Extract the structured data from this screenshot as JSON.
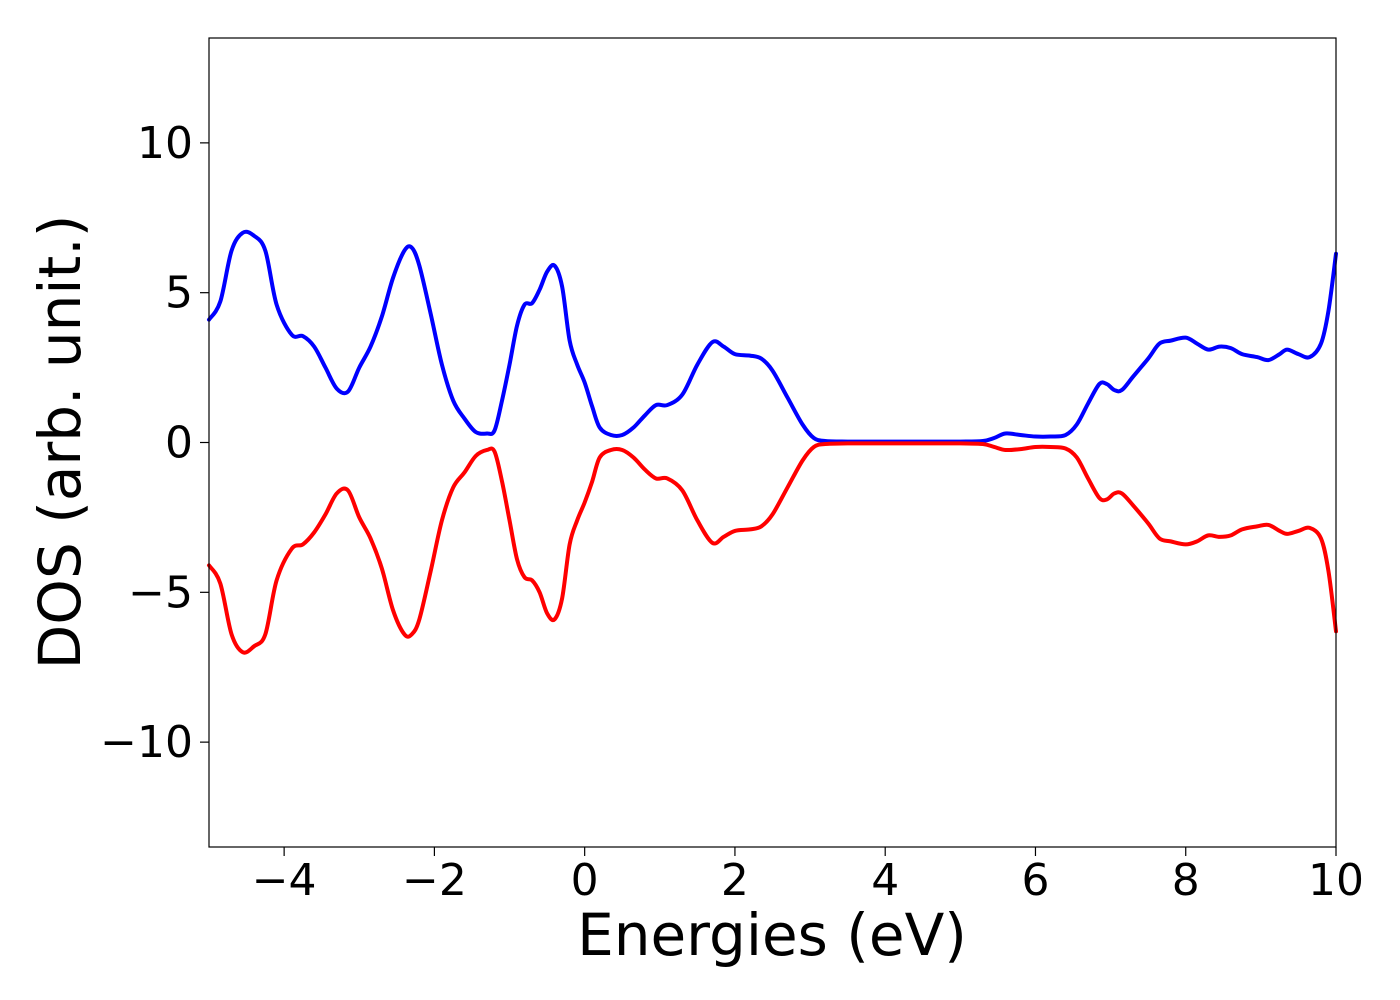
{
  "chart_data": {
    "type": "line",
    "title": "",
    "xlabel": "Energies (eV)",
    "ylabel": "DOS (arb. unit.)",
    "xlim": [
      -5,
      10
    ],
    "ylim": [
      -13.5,
      13.5
    ],
    "xticks": [
      -4,
      -2,
      0,
      2,
      4,
      6,
      8,
      10
    ],
    "yticks": [
      -10,
      -5,
      0,
      5,
      10
    ],
    "xtick_labels": [
      "−4",
      "−2",
      "0",
      "2",
      "4",
      "6",
      "8",
      "10"
    ],
    "ytick_labels": [
      "−10",
      "−5",
      "0",
      "5",
      "10"
    ],
    "grid": false,
    "legend": "none",
    "series": [
      {
        "color": "#0000ff",
        "x": [
          -5.0,
          -4.85,
          -4.7,
          -4.55,
          -4.4,
          -4.25,
          -4.1,
          -3.9,
          -3.75,
          -3.6,
          -3.45,
          -3.3,
          -3.15,
          -3.0,
          -2.85,
          -2.7,
          -2.55,
          -2.4,
          -2.3,
          -2.2,
          -2.05,
          -1.9,
          -1.75,
          -1.6,
          -1.45,
          -1.3,
          -1.2,
          -1.1,
          -1.0,
          -0.9,
          -0.8,
          -0.7,
          -0.6,
          -0.5,
          -0.4,
          -0.3,
          -0.2,
          -0.1,
          0.0,
          0.1,
          0.2,
          0.35,
          0.5,
          0.65,
          0.8,
          0.95,
          1.1,
          1.3,
          1.5,
          1.7,
          1.85,
          2.0,
          2.2,
          2.35,
          2.5,
          2.7,
          2.9,
          3.05,
          3.2,
          3.5,
          4.0,
          4.5,
          5.0,
          5.3,
          5.45,
          5.6,
          5.8,
          6.0,
          6.2,
          6.4,
          6.55,
          6.7,
          6.85,
          6.95,
          7.05,
          7.15,
          7.3,
          7.5,
          7.65,
          7.8,
          8.0,
          8.15,
          8.3,
          8.45,
          8.6,
          8.75,
          8.95,
          9.1,
          9.25,
          9.35,
          9.5,
          9.65,
          9.8,
          9.9,
          10.0
        ],
        "y": [
          4.1,
          4.7,
          6.4,
          7.0,
          6.9,
          6.4,
          4.6,
          3.6,
          3.55,
          3.2,
          2.5,
          1.8,
          1.7,
          2.5,
          3.2,
          4.2,
          5.5,
          6.4,
          6.5,
          5.9,
          4.3,
          2.6,
          1.4,
          0.8,
          0.35,
          0.3,
          0.4,
          1.4,
          2.6,
          3.9,
          4.6,
          4.65,
          5.1,
          5.7,
          5.9,
          5.2,
          3.4,
          2.6,
          2.0,
          1.2,
          0.5,
          0.25,
          0.25,
          0.5,
          0.9,
          1.25,
          1.25,
          1.6,
          2.6,
          3.35,
          3.2,
          2.95,
          2.9,
          2.8,
          2.4,
          1.5,
          0.6,
          0.15,
          0.05,
          0.03,
          0.03,
          0.03,
          0.03,
          0.05,
          0.15,
          0.3,
          0.25,
          0.2,
          0.2,
          0.25,
          0.6,
          1.3,
          1.95,
          1.95,
          1.75,
          1.75,
          2.2,
          2.8,
          3.3,
          3.4,
          3.5,
          3.3,
          3.1,
          3.2,
          3.15,
          2.95,
          2.85,
          2.75,
          2.95,
          3.1,
          2.95,
          2.85,
          3.3,
          4.4,
          6.3
        ]
      },
      {
        "color": "#ff0000",
        "x": [
          -5.0,
          -4.85,
          -4.7,
          -4.55,
          -4.4,
          -4.25,
          -4.1,
          -3.9,
          -3.75,
          -3.6,
          -3.45,
          -3.3,
          -3.15,
          -3.0,
          -2.85,
          -2.7,
          -2.55,
          -2.4,
          -2.3,
          -2.2,
          -2.05,
          -1.9,
          -1.75,
          -1.6,
          -1.45,
          -1.3,
          -1.2,
          -1.1,
          -1.0,
          -0.9,
          -0.8,
          -0.7,
          -0.6,
          -0.5,
          -0.4,
          -0.3,
          -0.2,
          -0.1,
          0.0,
          0.1,
          0.2,
          0.35,
          0.5,
          0.65,
          0.8,
          0.95,
          1.1,
          1.3,
          1.5,
          1.7,
          1.85,
          2.0,
          2.2,
          2.35,
          2.5,
          2.7,
          2.9,
          3.05,
          3.2,
          3.5,
          4.0,
          4.5,
          5.0,
          5.3,
          5.45,
          5.6,
          5.8,
          6.0,
          6.2,
          6.4,
          6.55,
          6.7,
          6.85,
          6.95,
          7.05,
          7.15,
          7.3,
          7.5,
          7.65,
          7.8,
          8.0,
          8.15,
          8.3,
          8.45,
          8.6,
          8.75,
          8.95,
          9.1,
          9.25,
          9.35,
          9.5,
          9.65,
          9.8,
          9.9,
          10.0
        ],
        "y": [
          -4.1,
          -4.7,
          -6.4,
          -7.0,
          -6.8,
          -6.4,
          -4.6,
          -3.55,
          -3.4,
          -3.0,
          -2.4,
          -1.7,
          -1.6,
          -2.5,
          -3.2,
          -4.2,
          -5.6,
          -6.4,
          -6.4,
          -5.9,
          -4.3,
          -2.6,
          -1.5,
          -1.0,
          -0.45,
          -0.25,
          -0.3,
          -1.3,
          -2.6,
          -3.9,
          -4.5,
          -4.6,
          -5.0,
          -5.7,
          -5.9,
          -5.2,
          -3.4,
          -2.6,
          -2.0,
          -1.3,
          -0.5,
          -0.25,
          -0.25,
          -0.5,
          -0.9,
          -1.2,
          -1.2,
          -1.6,
          -2.6,
          -3.35,
          -3.15,
          -2.95,
          -2.9,
          -2.8,
          -2.4,
          -1.5,
          -0.6,
          -0.15,
          -0.05,
          -0.03,
          -0.03,
          -0.03,
          -0.03,
          -0.05,
          -0.15,
          -0.25,
          -0.22,
          -0.15,
          -0.15,
          -0.2,
          -0.5,
          -1.2,
          -1.85,
          -1.9,
          -1.7,
          -1.7,
          -2.1,
          -2.7,
          -3.2,
          -3.3,
          -3.4,
          -3.3,
          -3.1,
          -3.15,
          -3.1,
          -2.9,
          -2.8,
          -2.75,
          -2.95,
          -3.05,
          -2.95,
          -2.85,
          -3.2,
          -4.3,
          -6.3
        ]
      }
    ]
  }
}
